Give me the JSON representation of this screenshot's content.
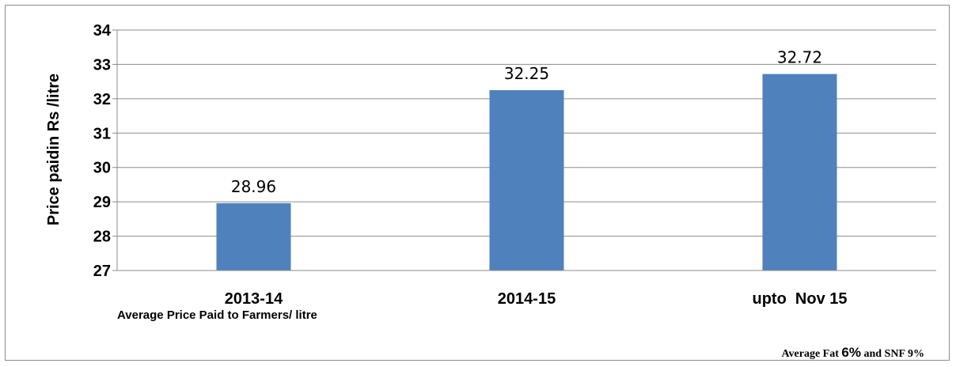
{
  "chart_data": {
    "type": "bar",
    "categories": [
      "2013-14",
      "2014-15",
      "upto  Nov 15"
    ],
    "values": [
      28.96,
      32.25,
      32.72
    ],
    "data_labels": [
      "28.96",
      "32.25",
      "32.72"
    ],
    "ylabel": "Price paidin Rs /litre",
    "xlabel": "",
    "ylim": [
      27,
      34
    ],
    "yticks": [
      27,
      28,
      29,
      30,
      31,
      32,
      33,
      34
    ],
    "grid": true,
    "bar_color": "#4f81bd",
    "subtitle": "Average Price Paid to Farmers/ litre",
    "note": {
      "prefix": "Average Fat ",
      "fat": "6%",
      "middle": " and SNF ",
      "snf": "9%"
    }
  }
}
